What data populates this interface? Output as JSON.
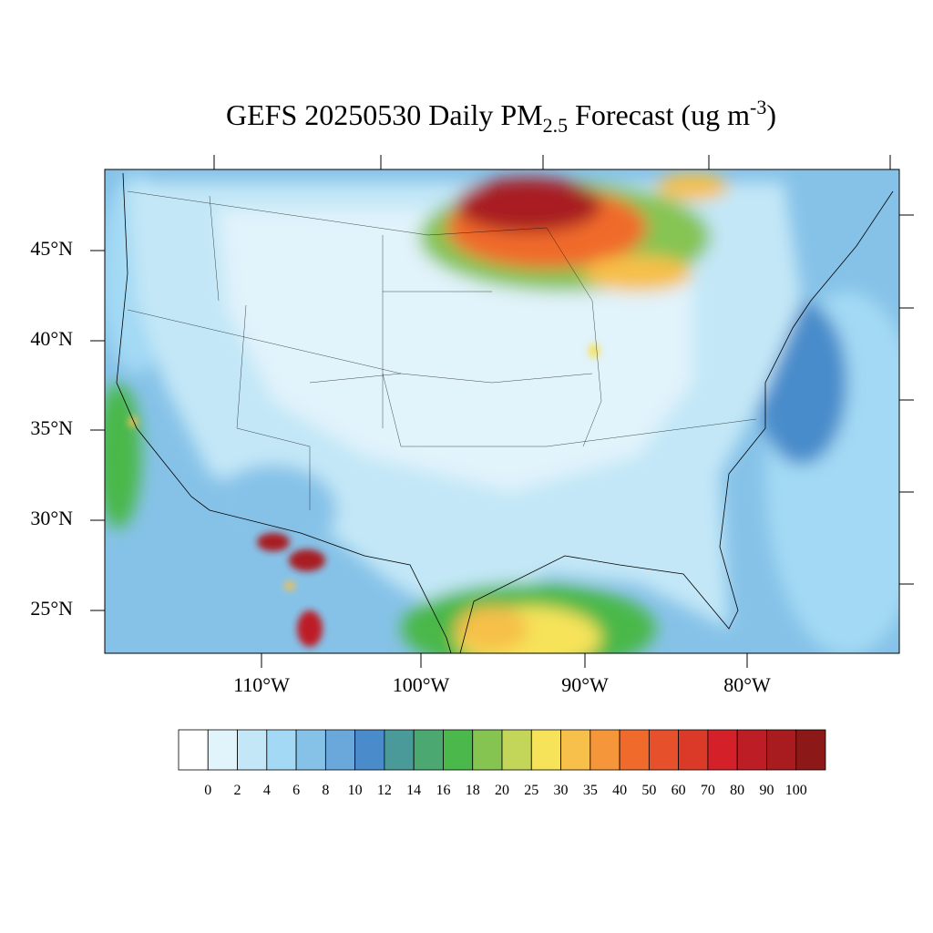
{
  "map": {
    "title": {
      "main": "GEFS 20250530 Daily PM",
      "sub": "2.5",
      "rest": " Forecast (ug m",
      "sup": "-3",
      "end": ")"
    },
    "lat_labels": [
      "45°N",
      "40°N",
      "35°N",
      "30°N",
      "25°N"
    ],
    "lon_labels": [
      "110°W",
      "100°W",
      "90°W",
      "80°W"
    ],
    "colorbar": {
      "labels": [
        "0",
        "2",
        "4",
        "6",
        "8",
        "10",
        "12",
        "14",
        "16",
        "18",
        "20",
        "25",
        "30",
        "35",
        "40",
        "50",
        "60",
        "70",
        "80",
        "90",
        "100"
      ],
      "colors": [
        "#ffffff",
        "#e1f3fb",
        "#c3e7f7",
        "#a3d9f4",
        "#86c2e8",
        "#6aa8dc",
        "#4a8ccb",
        "#4a9a9a",
        "#4aa870",
        "#4ab84a",
        "#86c452",
        "#c4d65a",
        "#f6e35a",
        "#f6c04a",
        "#f5963a",
        "#f06a2c",
        "#e6512c",
        "#dc3a28",
        "#d42129",
        "#bd1d25",
        "#a81c20",
        "#8c1818"
      ]
    }
  }
}
